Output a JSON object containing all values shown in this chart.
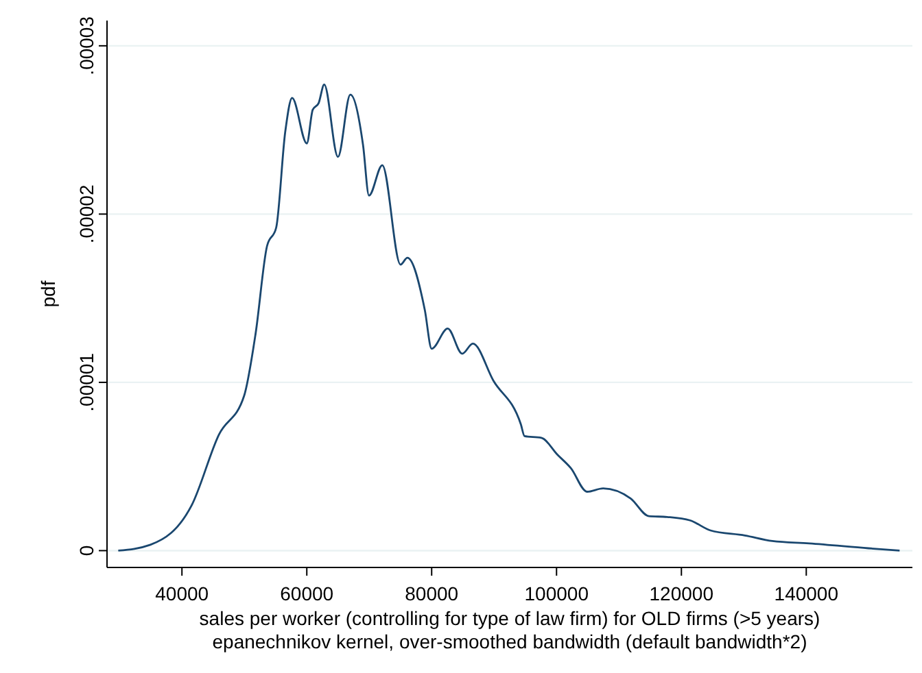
{
  "chart_data": {
    "type": "line",
    "xlabel": "sales per worker (controlling for type of law firm) for OLD firms (>5 years)\nepanechnikov kernel, over-smoothed bandwidth (default bandwidth*2)",
    "ylabel": "pdf",
    "xlim": [
      28000,
      157000
    ],
    "xticks": [
      40000,
      60000,
      80000,
      100000,
      120000,
      140000
    ],
    "ylim": [
      -1e-06,
      3.15e-05
    ],
    "yticks": [
      {
        "value": 0,
        "label": "0"
      },
      {
        "value": 1e-05,
        "label": ".00001"
      },
      {
        "value": 2e-05,
        "label": ".00002"
      },
      {
        "value": 3e-05,
        "label": ".00003"
      }
    ],
    "grid": "y",
    "line_style": "solid",
    "marker": "none",
    "series": [
      {
        "color": "#1a476f",
        "x": [
          29800,
          34950,
          41540,
          45930,
          49960,
          51800,
          53630,
          55100,
          56550,
          57650,
          60000,
          60950,
          61900,
          62790,
          64990,
          66970,
          69010,
          69960,
          72090,
          75010,
          76110,
          78900,
          80000,
          82570,
          84900,
          86590,
          89890,
          94290,
          94880,
          97580,
          100150,
          102300,
          104900,
          107470,
          111870,
          114790,
          117710,
          121370,
          124670,
          130170,
          134560,
          140440,
          149960,
          154950
        ],
        "values": [
          0,
          3.5e-07,
          2.68e-06,
          6.9e-06,
          9.2e-06,
          1.29e-05,
          1.81e-05,
          1.92e-05,
          2.49e-05,
          2.69e-05,
          2.42e-05,
          2.62e-05,
          2.66e-05,
          2.77e-05,
          2.34e-05,
          2.71e-05,
          2.41e-05,
          2.11e-05,
          2.29e-05,
          1.7e-05,
          1.74e-05,
          1.43e-05,
          1.2e-05,
          1.32e-05,
          1.17e-05,
          1.23e-05,
          1.01e-05,
          7.5e-06,
          6.8e-06,
          6.7e-06,
          5.7e-06,
          4.9e-06,
          3.5e-06,
          3.7e-06,
          3.1e-06,
          2.05e-06,
          2e-06,
          1.8e-06,
          1.2e-06,
          9e-07,
          5.7e-07,
          4.3e-07,
          1.4e-07,
          0
        ]
      }
    ]
  }
}
